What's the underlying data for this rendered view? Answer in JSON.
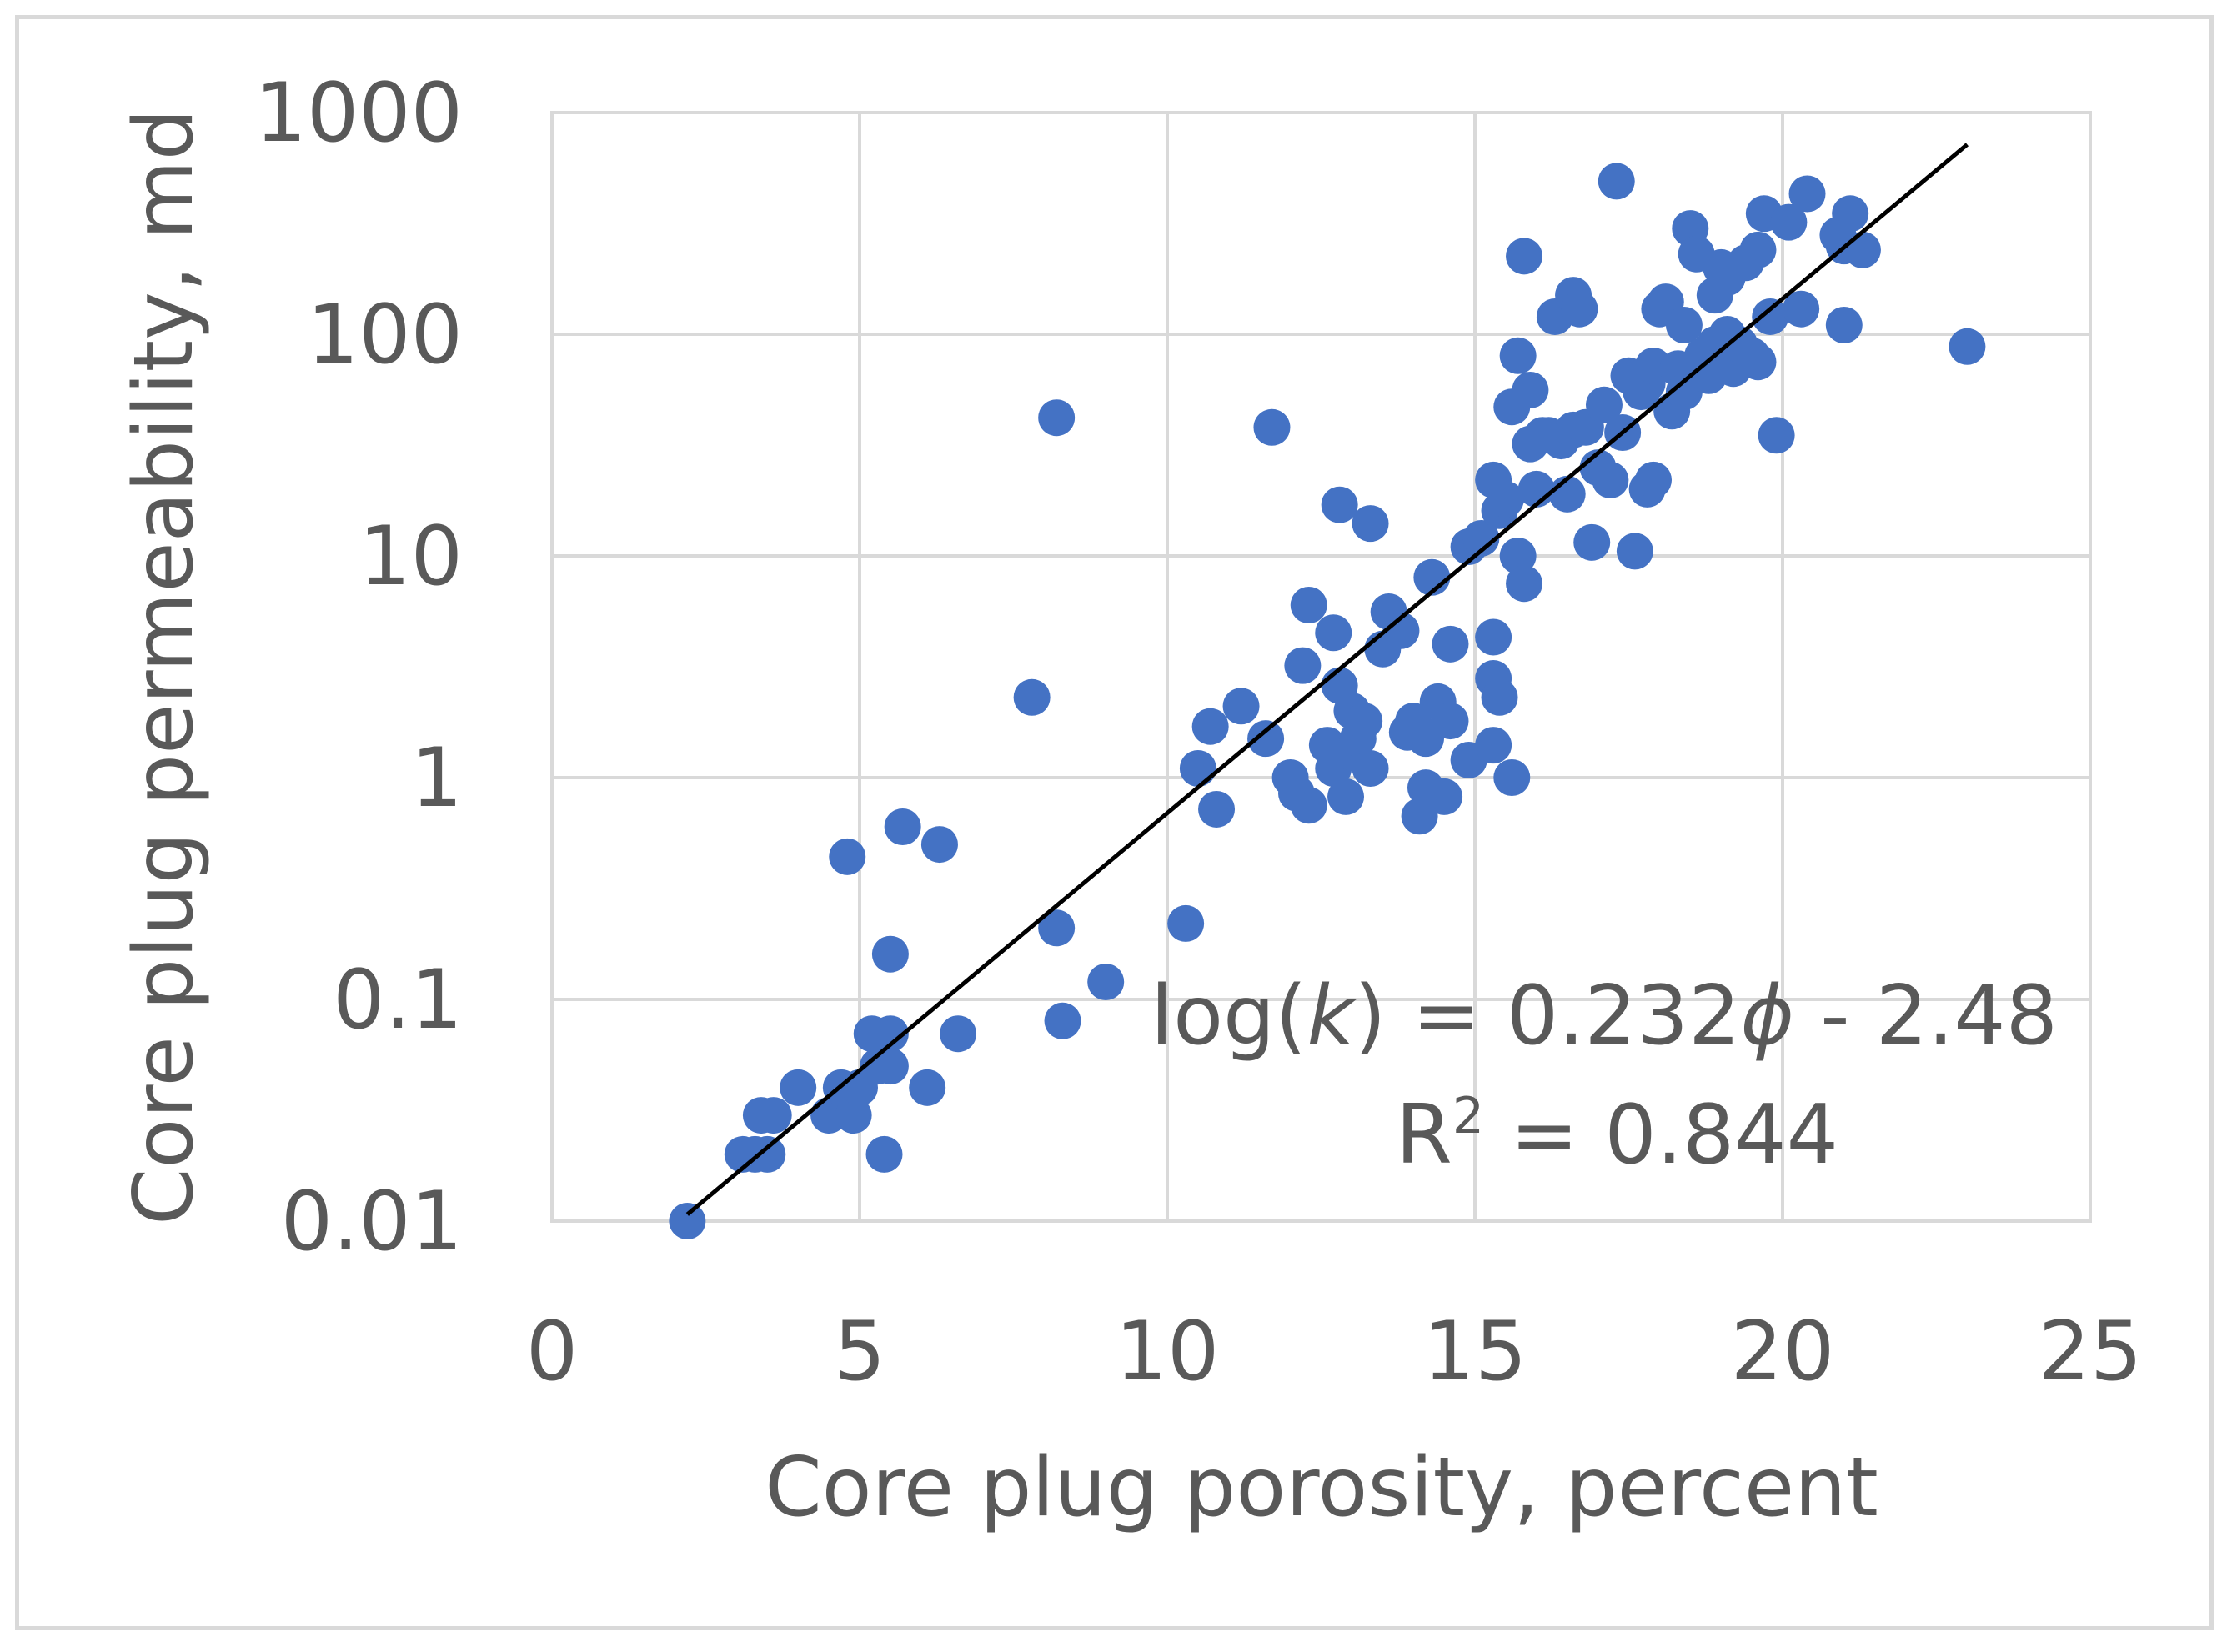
{
  "chart_data": {
    "type": "scatter",
    "title": "",
    "xlabel": "Core plug porosity, percent",
    "ylabel": "Core plug permeability, md",
    "xlim": [
      0,
      25
    ],
    "ylim": [
      0.01,
      1000
    ],
    "yscale": "log",
    "grid": true,
    "x_ticks": [
      "0",
      "5",
      "10",
      "15",
      "20",
      "25"
    ],
    "y_ticks": [
      "0.01",
      "0.1",
      "1",
      "10",
      "100",
      "1000"
    ],
    "series": [
      {
        "name": "Core plugs",
        "color": "#4472c4",
        "points": [
          [
            2.2,
            0.01
          ],
          [
            3.1,
            0.02
          ],
          [
            3.3,
            0.02
          ],
          [
            3.5,
            0.02
          ],
          [
            3.4,
            0.03
          ],
          [
            3.6,
            0.03
          ],
          [
            4.0,
            0.04
          ],
          [
            4.5,
            0.03
          ],
          [
            4.7,
            0.04
          ],
          [
            4.9,
            0.03
          ],
          [
            5.0,
            0.04
          ],
          [
            5.3,
            0.05
          ],
          [
            5.5,
            0.05
          ],
          [
            5.2,
            0.07
          ],
          [
            5.5,
            0.07
          ],
          [
            5.4,
            0.02
          ],
          [
            6.1,
            0.04
          ],
          [
            6.6,
            0.07
          ],
          [
            5.5,
            0.16
          ],
          [
            4.8,
            0.44
          ],
          [
            5.7,
            0.6
          ],
          [
            6.3,
            0.5
          ],
          [
            8.2,
            0.21
          ],
          [
            8.3,
            0.08
          ],
          [
            9.0,
            0.12
          ],
          [
            10.3,
            0.22
          ],
          [
            7.8,
            2.3
          ],
          [
            8.2,
            42
          ],
          [
            10.5,
            1.1
          ],
          [
            10.7,
            1.7
          ],
          [
            10.8,
            0.72
          ],
          [
            11.2,
            2.1
          ],
          [
            11.6,
            1.5
          ],
          [
            11.7,
            38
          ],
          [
            12.0,
            1.0
          ],
          [
            12.1,
            0.85
          ],
          [
            12.2,
            3.2
          ],
          [
            12.3,
            6.0
          ],
          [
            12.3,
            0.75
          ],
          [
            12.6,
            1.4
          ],
          [
            12.7,
            1.1
          ],
          [
            12.7,
            4.5
          ],
          [
            12.8,
            17
          ],
          [
            12.8,
            2.6
          ],
          [
            12.9,
            0.82
          ],
          [
            13.0,
            1.3
          ],
          [
            13.0,
            2.0
          ],
          [
            13.1,
            1.5
          ],
          [
            13.2,
            1.8
          ],
          [
            13.3,
            14
          ],
          [
            13.3,
            1.1
          ],
          [
            13.5,
            3.8
          ],
          [
            13.6,
            5.6
          ],
          [
            13.8,
            4.6
          ],
          [
            13.9,
            1.6
          ],
          [
            14.0,
            1.8
          ],
          [
            14.1,
            0.67
          ],
          [
            14.2,
            0.9
          ],
          [
            14.2,
            1.5
          ],
          [
            14.3,
            8.0
          ],
          [
            14.4,
            2.2
          ],
          [
            14.5,
            0.82
          ],
          [
            14.6,
            1.8
          ],
          [
            14.6,
            4.0
          ],
          [
            14.9,
            11
          ],
          [
            14.9,
            1.2
          ],
          [
            15.1,
            12
          ],
          [
            15.3,
            4.3
          ],
          [
            15.3,
            1.4
          ],
          [
            15.3,
            2.8
          ],
          [
            15.4,
            2.3
          ],
          [
            15.3,
            22
          ],
          [
            15.4,
            16
          ],
          [
            15.5,
            18
          ],
          [
            15.6,
            47
          ],
          [
            15.6,
            1.0
          ],
          [
            15.7,
            10
          ],
          [
            15.7,
            80
          ],
          [
            15.8,
            7.5
          ],
          [
            15.8,
            225
          ],
          [
            15.9,
            56
          ],
          [
            15.9,
            32
          ],
          [
            16.0,
            20
          ],
          [
            16.1,
            35
          ],
          [
            16.2,
            35
          ],
          [
            16.3,
            120
          ],
          [
            16.4,
            33
          ],
          [
            16.5,
            19
          ],
          [
            16.6,
            150
          ],
          [
            16.6,
            37
          ],
          [
            16.7,
            130
          ],
          [
            16.8,
            38
          ],
          [
            16.9,
            11.5
          ],
          [
            17.0,
            25
          ],
          [
            17.1,
            48
          ],
          [
            17.2,
            22
          ],
          [
            17.3,
            490
          ],
          [
            17.4,
            36
          ],
          [
            17.5,
            65
          ],
          [
            17.6,
            10.5
          ],
          [
            17.7,
            55
          ],
          [
            17.8,
            60
          ],
          [
            17.8,
            20
          ],
          [
            17.9,
            22
          ],
          [
            17.9,
            72
          ],
          [
            18.0,
            130
          ],
          [
            18.1,
            140
          ],
          [
            18.2,
            45
          ],
          [
            18.3,
            70
          ],
          [
            18.4,
            110
          ],
          [
            18.4,
            55
          ],
          [
            18.5,
            300
          ],
          [
            18.6,
            230
          ],
          [
            18.7,
            80
          ],
          [
            18.8,
            65
          ],
          [
            18.9,
            90
          ],
          [
            18.9,
            150
          ],
          [
            19.0,
            200
          ],
          [
            19.1,
            100
          ],
          [
            19.1,
            180
          ],
          [
            19.2,
            70
          ],
          [
            19.3,
            90
          ],
          [
            19.4,
            210
          ],
          [
            19.5,
            80
          ],
          [
            19.6,
            75
          ],
          [
            19.6,
            240
          ],
          [
            19.7,
            350
          ],
          [
            19.8,
            120
          ],
          [
            19.9,
            35
          ],
          [
            20.1,
            320
          ],
          [
            20.3,
            130
          ],
          [
            20.4,
            430
          ],
          [
            20.9,
            280
          ],
          [
            21.0,
            250
          ],
          [
            21.0,
            110
          ],
          [
            21.1,
            350
          ],
          [
            21.3,
            240
          ],
          [
            23.0,
            88
          ]
        ]
      }
    ],
    "trendline": {
      "type": "exponential",
      "x_range": [
        2.2,
        23.0
      ],
      "slope": 0.232,
      "intercept": -2.48,
      "color": "#000000"
    },
    "annotations": {
      "equation_prefix": "log(",
      "equation_var": "k",
      "equation_mid": ") = 0.232",
      "equation_phi": "ϕ",
      "equation_suffix": " - 2.48",
      "r2_prefix": "R",
      "r2_sup": "2",
      "r2_suffix": " = 0.844"
    }
  }
}
